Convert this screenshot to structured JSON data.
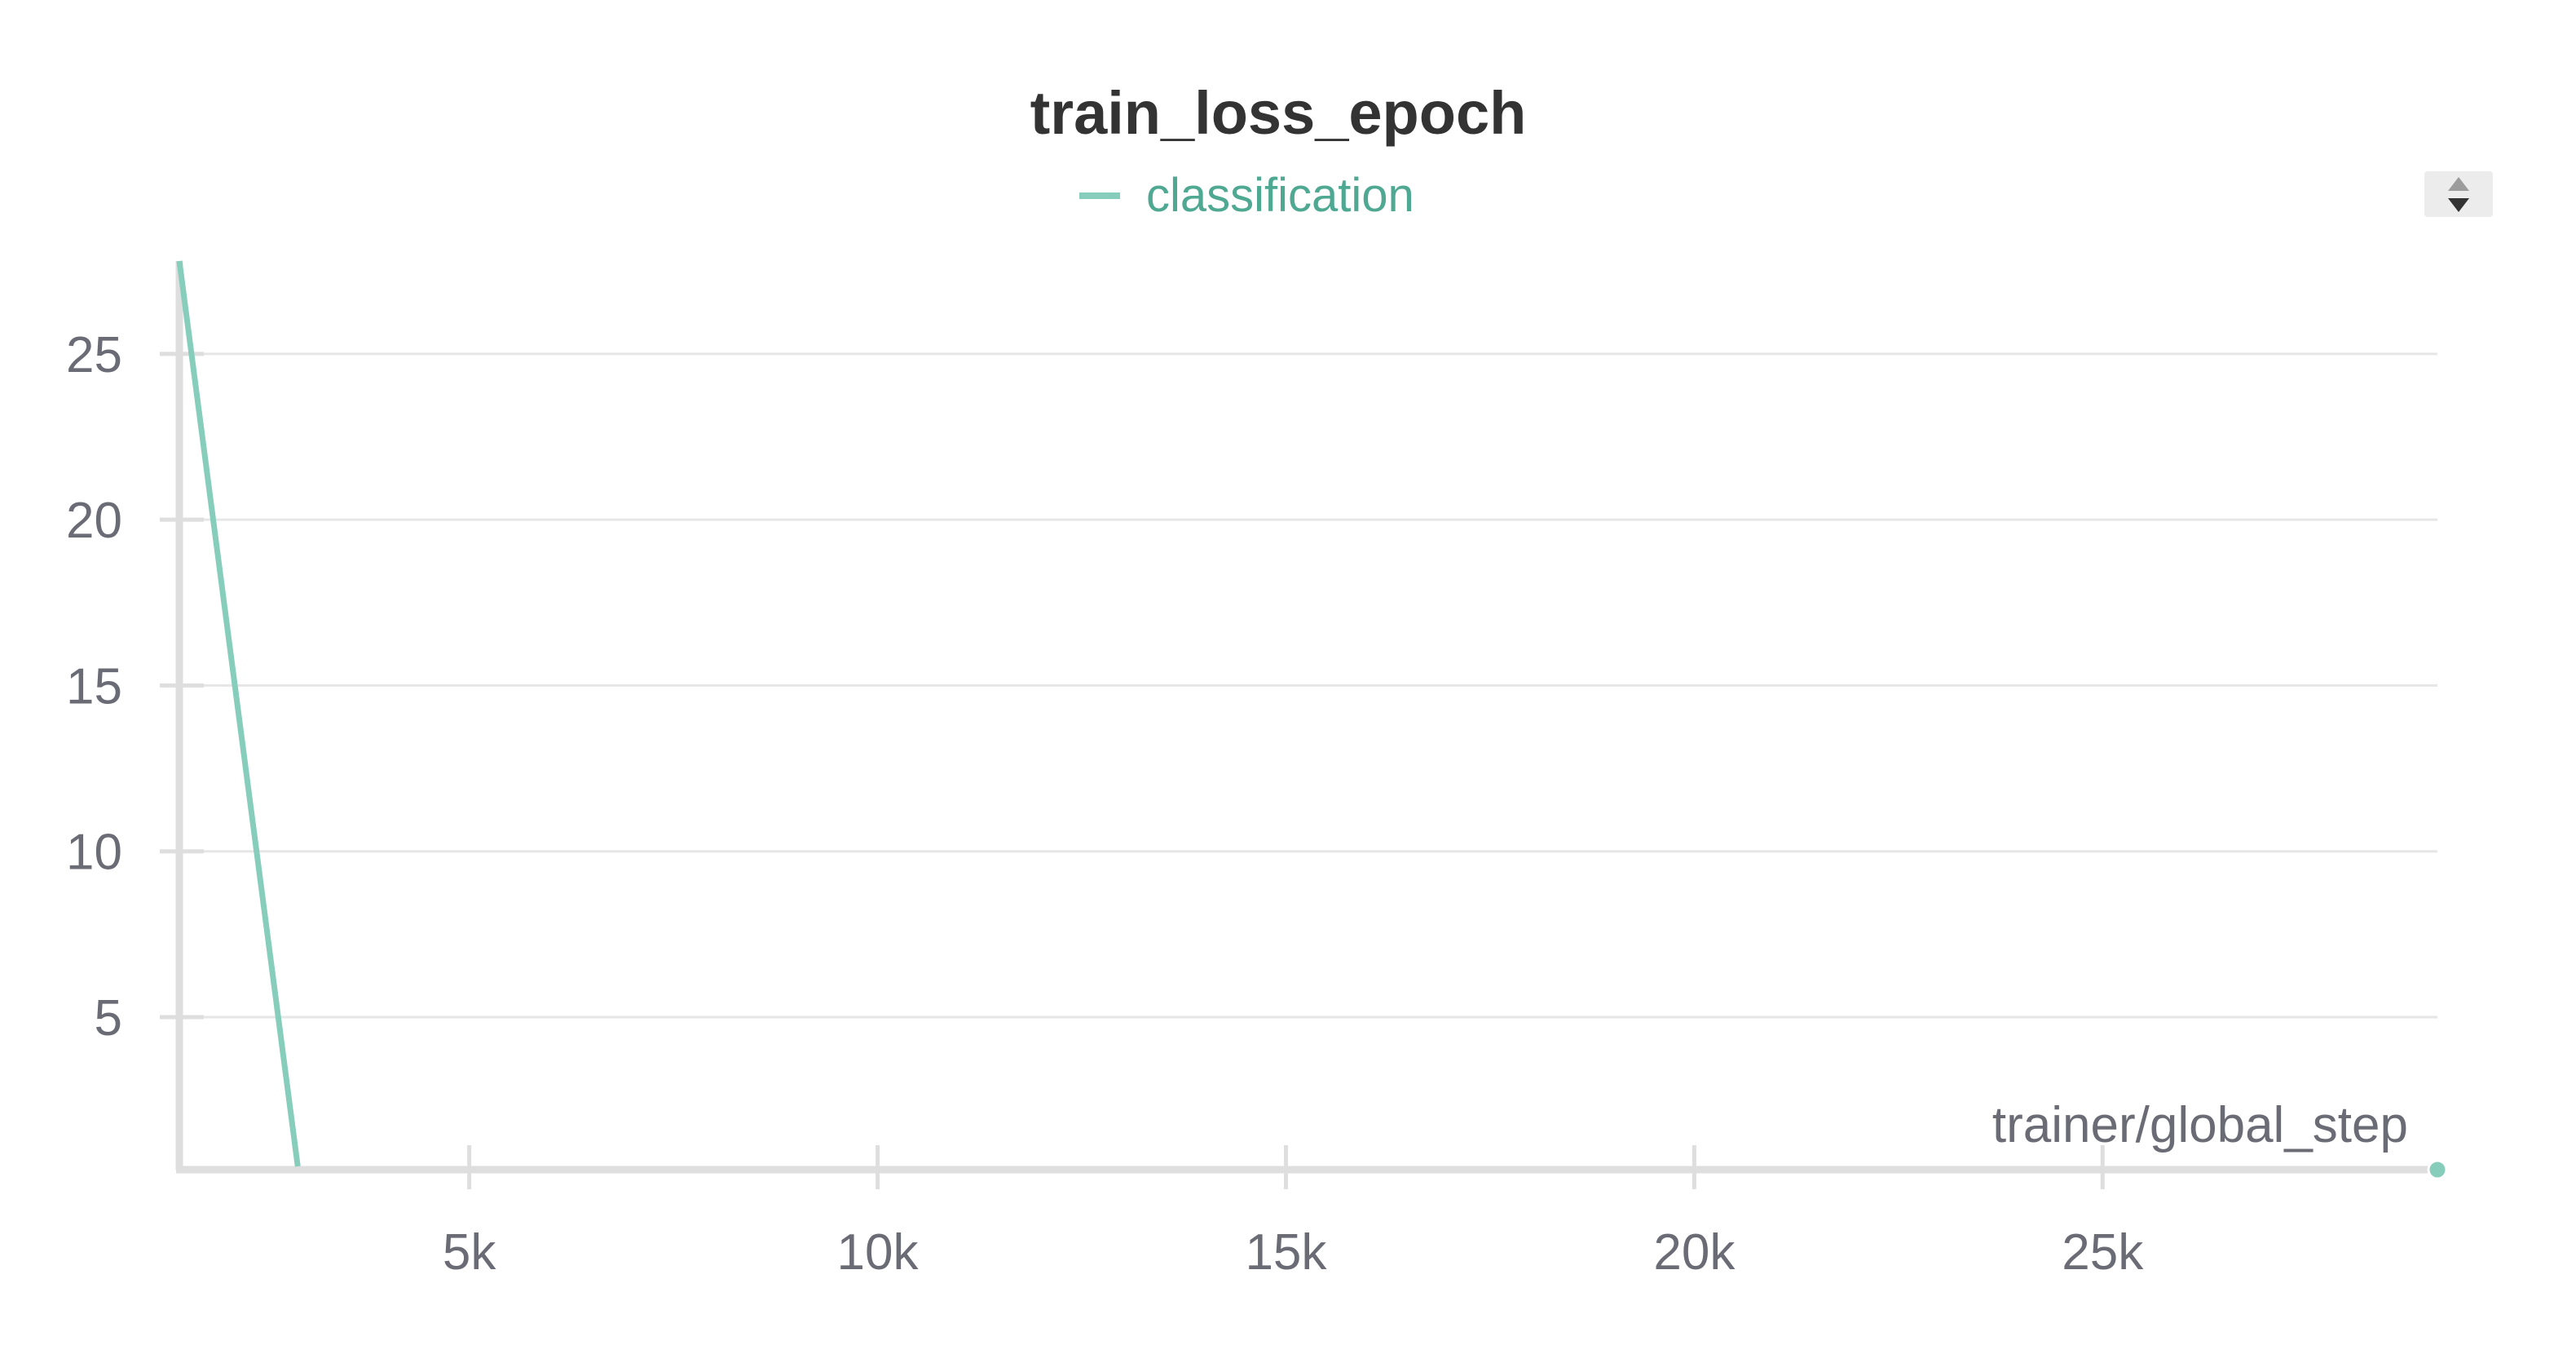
{
  "colors": {
    "series": "#86cdbb",
    "legend_text": "#4ea892",
    "text": "#6b6b76",
    "title": "#333333",
    "grid": "#e6e6e6",
    "axis": "#dedede",
    "sort_bg": "#ececec",
    "sort_arrow_up": "#9c9c9c",
    "sort_arrow_down": "#333333"
  },
  "icons": {
    "legend_swatch": "legend-line-swatch",
    "sort_control": "sort-toggle-icon"
  },
  "chart_data": {
    "type": "line",
    "title": "train_loss_epoch",
    "xlabel": "trainer/global_step",
    "ylabel": "",
    "legend": [
      "classification"
    ],
    "legend_position": "top-center",
    "grid": "horizontal",
    "xlim": [
      1450,
      29100
    ],
    "ylim": [
      0.4,
      27.8
    ],
    "x_ticks": [
      5000,
      10000,
      15000,
      20000,
      25000
    ],
    "x_tick_labels": [
      "5k",
      "10k",
      "15k",
      "20k",
      "25k"
    ],
    "y_ticks": [
      5,
      10,
      15,
      20,
      25
    ],
    "y_tick_labels": [
      "5",
      "10",
      "15",
      "20",
      "25"
    ],
    "series": [
      {
        "name": "classification",
        "x": [
          1450,
          2900
        ],
        "y": [
          27.8,
          0.5
        ]
      }
    ],
    "end_marker": {
      "x": 29100,
      "y": 0.4
    }
  }
}
